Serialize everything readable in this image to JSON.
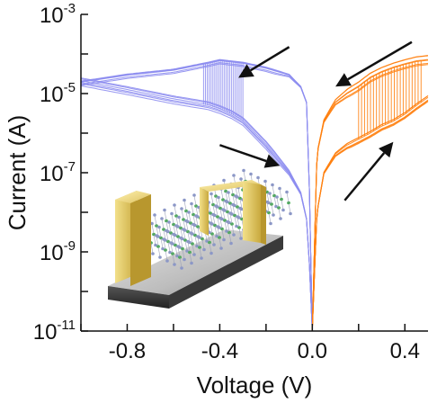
{
  "chart_data": {
    "type": "line",
    "title": "",
    "xlabel": "Voltage (V)",
    "ylabel": "Current (A)",
    "xlim": [
      -1.0,
      0.5
    ],
    "ylim": [
      1e-11,
      0.001
    ],
    "yscale": "log",
    "grid": false,
    "x_ticks": [
      {
        "value": -0.8,
        "label": "-0.8"
      },
      {
        "value": -0.4,
        "label": "-0.4"
      },
      {
        "value": 0.0,
        "label": "0.0"
      },
      {
        "value": 0.4,
        "label": "0.4"
      }
    ],
    "y_ticks": [
      {
        "value": 0.001,
        "base": "10",
        "exp": "-3"
      },
      {
        "value": 1e-05,
        "base": "10",
        "exp": "-5"
      },
      {
        "value": 1e-07,
        "base": "10",
        "exp": "-7"
      },
      {
        "value": 1e-09,
        "base": "10",
        "exp": "-9"
      },
      {
        "value": 1e-11,
        "base": "10",
        "exp": "-11"
      }
    ],
    "colors": {
      "negative_sweep": "#8c8cf0",
      "positive_sweep": "#ff7f0e",
      "arrow": "#111111",
      "axis": "#111111"
    },
    "series": [
      {
        "sweep": "negative",
        "branch": "high_current",
        "x": [
          -1.0,
          -0.8,
          -0.6,
          -0.45,
          -0.4,
          -0.3,
          -0.2,
          -0.1,
          -0.05,
          -0.02,
          0.0
        ],
        "y": [
          2e-05,
          3e-05,
          4e-05,
          6e-05,
          7e-05,
          6e-05,
          4.5e-05,
          3e-05,
          1.5e-05,
          5e-06,
          1e-11
        ]
      },
      {
        "sweep": "negative",
        "branch": "low_current",
        "x": [
          -1.0,
          -0.8,
          -0.6,
          -0.45,
          -0.4,
          -0.35,
          -0.3,
          -0.2,
          -0.1,
          -0.05,
          -0.02,
          0.0
        ],
        "y": [
          2e-05,
          1.2e-05,
          7e-06,
          5e-06,
          4e-06,
          3e-06,
          2e-06,
          5e-07,
          1e-07,
          3e-08,
          5e-09,
          1e-11
        ]
      },
      {
        "sweep": "positive",
        "branch": "low_current",
        "x": [
          0.0,
          0.02,
          0.05,
          0.1,
          0.15,
          0.2,
          0.25,
          0.3,
          0.35,
          0.4,
          0.45,
          0.5
        ],
        "y": [
          1e-11,
          1e-08,
          1e-07,
          3e-07,
          5e-07,
          7e-07,
          1e-06,
          1.5e-06,
          2e-06,
          3e-06,
          5e-06,
          8e-06
        ]
      },
      {
        "sweep": "positive",
        "branch": "high_current",
        "x": [
          0.0,
          0.02,
          0.05,
          0.1,
          0.15,
          0.2,
          0.25,
          0.3,
          0.35,
          0.4,
          0.45,
          0.5
        ],
        "y": [
          1e-11,
          3e-07,
          2e-06,
          6e-06,
          1e-05,
          1.5e-05,
          2.5e-05,
          3.5e-05,
          4.5e-05,
          5.5e-05,
          6.5e-05,
          7e-05
        ]
      }
    ],
    "switching": {
      "negative": {
        "x_from": -0.47,
        "x_to": -0.3
      },
      "positive": {
        "x_from": 0.2,
        "x_to": 0.47
      }
    },
    "arrows": [
      {
        "from": [
          -0.1,
          0.00015
        ],
        "to": [
          -0.32,
          2.5e-05
        ]
      },
      {
        "from": [
          -0.4,
          5e-07
        ],
        "to": [
          -0.14,
          1.5e-07
        ]
      },
      {
        "from": [
          0.14,
          2e-08
        ],
        "to": [
          0.35,
          6e-07
        ]
      },
      {
        "from": [
          0.43,
          0.0002
        ],
        "to": [
          0.1,
          1.5e-05
        ]
      }
    ],
    "inset_illustration": "device schematic with two gold electrodes on a layered crystal"
  }
}
